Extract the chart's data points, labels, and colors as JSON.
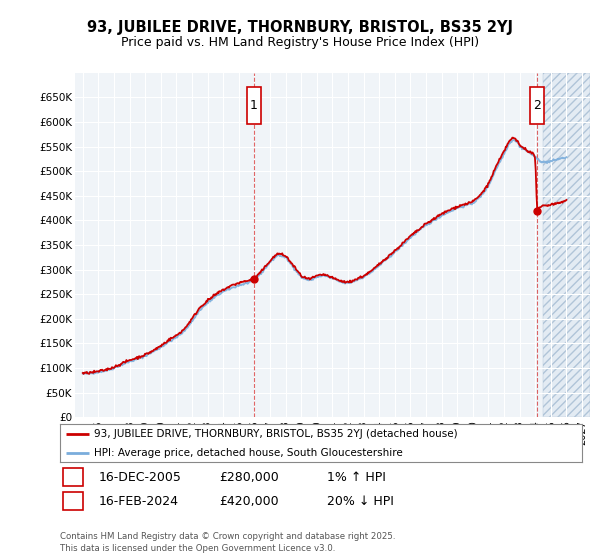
{
  "title_line1": "93, JUBILEE DRIVE, THORNBURY, BRISTOL, BS35 2YJ",
  "title_line2": "Price paid vs. HM Land Registry's House Price Index (HPI)",
  "ylim": [
    0,
    700000
  ],
  "yticks": [
    0,
    50000,
    100000,
    150000,
    200000,
    250000,
    300000,
    350000,
    400000,
    450000,
    500000,
    550000,
    600000,
    650000
  ],
  "ytick_labels": [
    "£0",
    "£50K",
    "£100K",
    "£150K",
    "£200K",
    "£250K",
    "£300K",
    "£350K",
    "£400K",
    "£450K",
    "£500K",
    "£550K",
    "£600K",
    "£650K"
  ],
  "xlim_start": 1994.5,
  "xlim_end": 2027.5,
  "xtick_years": [
    1995,
    1996,
    1997,
    1998,
    1999,
    2000,
    2001,
    2002,
    2003,
    2004,
    2005,
    2006,
    2007,
    2008,
    2009,
    2010,
    2011,
    2012,
    2013,
    2014,
    2015,
    2016,
    2017,
    2018,
    2019,
    2020,
    2021,
    2022,
    2023,
    2024,
    2025,
    2026,
    2027
  ],
  "hpi_color": "#7aaddc",
  "price_color": "#cc0000",
  "plot_bg": "#f0f4f8",
  "grid_color": "#ffffff",
  "sale1_date": 2005.96,
  "sale1_price": 280000,
  "sale2_date": 2024.12,
  "sale2_price": 420000,
  "legend_label1": "93, JUBILEE DRIVE, THORNBURY, BRISTOL, BS35 2YJ (detached house)",
  "legend_label2": "HPI: Average price, detached house, South Gloucestershire",
  "note1_num": "1",
  "note1_date": "16-DEC-2005",
  "note1_price": "£280,000",
  "note1_hpi": "1% ↑ HPI",
  "note2_num": "2",
  "note2_date": "16-FEB-2024",
  "note2_price": "£420,000",
  "note2_hpi": "20% ↓ HPI",
  "footer": "Contains HM Land Registry data © Crown copyright and database right 2025.\nThis data is licensed under the Open Government Licence v3.0.",
  "future_start": 2024.5,
  "hpi_anchors": [
    [
      1995.0,
      88000
    ],
    [
      1995.5,
      89500
    ],
    [
      1996.0,
      92000
    ],
    [
      1996.5,
      95000
    ],
    [
      1997.0,
      100000
    ],
    [
      1997.5,
      107000
    ],
    [
      1998.0,
      113000
    ],
    [
      1998.5,
      118000
    ],
    [
      1999.0,
      125000
    ],
    [
      1999.5,
      133000
    ],
    [
      2000.0,
      142000
    ],
    [
      2000.5,
      153000
    ],
    [
      2001.0,
      162000
    ],
    [
      2001.5,
      175000
    ],
    [
      2002.0,
      195000
    ],
    [
      2002.5,
      218000
    ],
    [
      2003.0,
      232000
    ],
    [
      2003.5,
      245000
    ],
    [
      2004.0,
      255000
    ],
    [
      2004.5,
      262000
    ],
    [
      2005.0,
      268000
    ],
    [
      2005.5,
      272000
    ],
    [
      2005.96,
      278000
    ],
    [
      2006.0,
      280000
    ],
    [
      2006.5,
      295000
    ],
    [
      2007.0,
      315000
    ],
    [
      2007.5,
      330000
    ],
    [
      2008.0,
      325000
    ],
    [
      2008.5,
      305000
    ],
    [
      2009.0,
      285000
    ],
    [
      2009.5,
      278000
    ],
    [
      2010.0,
      285000
    ],
    [
      2010.5,
      288000
    ],
    [
      2011.0,
      282000
    ],
    [
      2011.5,
      275000
    ],
    [
      2012.0,
      272000
    ],
    [
      2012.5,
      278000
    ],
    [
      2013.0,
      285000
    ],
    [
      2013.5,
      295000
    ],
    [
      2014.0,
      308000
    ],
    [
      2014.5,
      322000
    ],
    [
      2015.0,
      335000
    ],
    [
      2015.5,
      350000
    ],
    [
      2016.0,
      365000
    ],
    [
      2016.5,
      378000
    ],
    [
      2017.0,
      390000
    ],
    [
      2017.5,
      400000
    ],
    [
      2018.0,
      410000
    ],
    [
      2018.5,
      418000
    ],
    [
      2019.0,
      425000
    ],
    [
      2019.5,
      430000
    ],
    [
      2020.0,
      435000
    ],
    [
      2020.5,
      448000
    ],
    [
      2021.0,
      470000
    ],
    [
      2021.5,
      505000
    ],
    [
      2022.0,
      535000
    ],
    [
      2022.3,
      555000
    ],
    [
      2022.6,
      565000
    ],
    [
      2022.9,
      558000
    ],
    [
      2023.0,
      550000
    ],
    [
      2023.3,
      545000
    ],
    [
      2023.6,
      538000
    ],
    [
      2023.9,
      532000
    ],
    [
      2024.0,
      528000
    ],
    [
      2024.12,
      525000
    ],
    [
      2024.3,
      522000
    ],
    [
      2024.5,
      518000
    ],
    [
      2025.0,
      520000
    ],
    [
      2025.5,
      525000
    ],
    [
      2026.0,
      528000
    ]
  ],
  "price_anchors": [
    [
      1995.0,
      89000
    ],
    [
      1995.5,
      90500
    ],
    [
      1996.0,
      93000
    ],
    [
      1996.5,
      96500
    ],
    [
      1997.0,
      102000
    ],
    [
      1997.5,
      109000
    ],
    [
      1998.0,
      116000
    ],
    [
      1998.5,
      121000
    ],
    [
      1999.0,
      127000
    ],
    [
      1999.5,
      135000
    ],
    [
      2000.0,
      145000
    ],
    [
      2000.5,
      157000
    ],
    [
      2001.0,
      166000
    ],
    [
      2001.5,
      179000
    ],
    [
      2002.0,
      200000
    ],
    [
      2002.5,
      223000
    ],
    [
      2003.0,
      237000
    ],
    [
      2003.5,
      249000
    ],
    [
      2004.0,
      259000
    ],
    [
      2004.5,
      267000
    ],
    [
      2005.0,
      273000
    ],
    [
      2005.5,
      277000
    ],
    [
      2005.96,
      280000
    ],
    [
      2006.0,
      282000
    ],
    [
      2006.5,
      298000
    ],
    [
      2007.0,
      318000
    ],
    [
      2007.5,
      333000
    ],
    [
      2008.0,
      328000
    ],
    [
      2008.5,
      308000
    ],
    [
      2009.0,
      287000
    ],
    [
      2009.5,
      280000
    ],
    [
      2010.0,
      287000
    ],
    [
      2010.5,
      290000
    ],
    [
      2011.0,
      283000
    ],
    [
      2011.5,
      277000
    ],
    [
      2012.0,
      274000
    ],
    [
      2012.5,
      280000
    ],
    [
      2013.0,
      287000
    ],
    [
      2013.5,
      297000
    ],
    [
      2014.0,
      311000
    ],
    [
      2014.5,
      325000
    ],
    [
      2015.0,
      338000
    ],
    [
      2015.5,
      353000
    ],
    [
      2016.0,
      368000
    ],
    [
      2016.5,
      380000
    ],
    [
      2017.0,
      393000
    ],
    [
      2017.5,
      403000
    ],
    [
      2018.0,
      413000
    ],
    [
      2018.5,
      421000
    ],
    [
      2019.0,
      428000
    ],
    [
      2019.5,
      433000
    ],
    [
      2020.0,
      438000
    ],
    [
      2020.5,
      452000
    ],
    [
      2021.0,
      474000
    ],
    [
      2021.5,
      510000
    ],
    [
      2022.0,
      540000
    ],
    [
      2022.3,
      560000
    ],
    [
      2022.6,
      568000
    ],
    [
      2022.9,
      560000
    ],
    [
      2023.0,
      552000
    ],
    [
      2023.3,
      547000
    ],
    [
      2023.6,
      540000
    ],
    [
      2023.9,
      534000
    ],
    [
      2024.0,
      530000
    ],
    [
      2024.12,
      420000
    ],
    [
      2024.3,
      425000
    ],
    [
      2024.5,
      430000
    ],
    [
      2025.0,
      432000
    ],
    [
      2025.5,
      436000
    ],
    [
      2026.0,
      440000
    ]
  ]
}
